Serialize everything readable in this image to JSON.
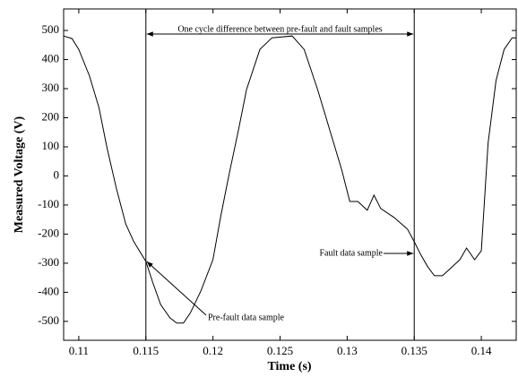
{
  "chart_data": {
    "type": "line",
    "xlabel": "Time (s)",
    "ylabel": "Measured Voltage (V)",
    "x": [
      0.10887,
      0.1095,
      0.11,
      0.1108,
      0.1115,
      0.1121,
      0.1128,
      0.1135,
      0.1141,
      0.115,
      0.1155,
      0.1161,
      0.1168,
      0.1173,
      0.1178,
      0.1183,
      0.1191,
      0.12,
      0.1206,
      0.1212,
      0.1219,
      0.1225,
      0.1235,
      0.1244,
      0.1259,
      0.1268,
      0.1278,
      0.1288,
      0.1296,
      0.1302,
      0.1308,
      0.1315,
      0.132,
      0.1325,
      0.1335,
      0.1345,
      0.135,
      0.1355,
      0.136,
      0.1365,
      0.1371,
      0.1377,
      0.1384,
      0.1389,
      0.1395,
      0.14,
      0.1405,
      0.1411,
      0.1417,
      0.1423,
      0.1426
    ],
    "series": [
      {
        "color": "#000000",
        "values": [
          481,
          472,
          435,
          343,
          235,
          97,
          -42,
          -165,
          -226,
          -294,
          -365,
          -442,
          -488,
          -506,
          -506,
          -472,
          -395,
          -288,
          -134,
          5,
          158,
          297,
          435,
          475,
          481,
          435,
          297,
          143,
          20,
          -88,
          -88,
          -118,
          -66,
          -112,
          -143,
          -183,
          -226,
          -272,
          -312,
          -343,
          -343,
          -318,
          -288,
          -248,
          -288,
          -257,
          112,
          328,
          435,
          475,
          475
        ]
      }
    ],
    "xlim": [
      0.10887,
      0.1426
    ],
    "xticks": [
      0.11,
      0.115,
      0.12,
      0.125,
      0.13,
      0.135,
      0.14
    ],
    "ylim": [
      -565,
      574
    ],
    "yticks": [
      500,
      400,
      300,
      200,
      100,
      0,
      -100,
      -200,
      -300,
      -400,
      -500
    ],
    "vlines": [
      0.115,
      0.135
    ],
    "annotations": {
      "cycle": "One cycle difference between pre-fault and fault samples",
      "prefault": "Pre-fault data sample",
      "fault": "Fault data sample"
    }
  }
}
